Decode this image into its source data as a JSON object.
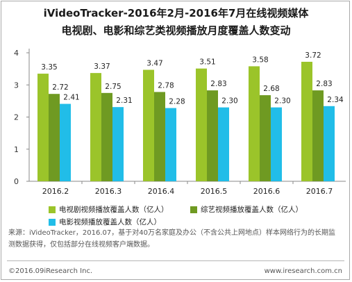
{
  "title_line1": "iVideoTracker-2016年2月-2016年7月在线视频媒体",
  "title_line2": "电视剧、电影和综艺类视频播放月度覆盖人数变动",
  "chart_data": {
    "type": "bar",
    "categories": [
      "2016.2",
      "2016.3",
      "2016.4",
      "2016.5",
      "2016.6",
      "2016.7"
    ],
    "series": [
      {
        "name": "电视剧视频播放覆盖人数（亿人）",
        "color": "#9bc42a",
        "values": [
          3.35,
          3.37,
          3.47,
          3.51,
          3.58,
          3.72
        ],
        "labels": [
          "3.35",
          "3.37",
          "3.47",
          "3.51",
          "3.58",
          "3.72"
        ]
      },
      {
        "name": "综艺视频播放覆盖人数（亿人）",
        "color": "#6f9a22",
        "values": [
          2.72,
          2.75,
          2.78,
          2.83,
          2.68,
          2.83
        ],
        "labels": [
          "2.72",
          "2.75",
          "2.78",
          "2.83",
          "2.68",
          "2.83"
        ]
      },
      {
        "name": "电影视频播放覆盖人数（亿人）",
        "color": "#21bde8",
        "values": [
          2.41,
          2.31,
          2.28,
          2.3,
          2.3,
          2.34
        ],
        "labels": [
          "2.41",
          "2.31",
          "2.28",
          "2.30",
          "2.30",
          "2.34"
        ]
      }
    ],
    "ylim": [
      0,
      4
    ],
    "yticks": [
      "0",
      "1",
      "2",
      "3",
      "4"
    ],
    "grid": false,
    "legend_position": "bottom"
  },
  "note": "来源：iVideoTracker，2016.07，基于对40万名家庭及办公（不含公共上网地点）样本网络行为的长期监测数据获得，仅包括部分在线视频客户端数据。",
  "footer": {
    "copyright": "©2016.09iResearch Inc.",
    "website": "www.iresearch.com.cn"
  }
}
